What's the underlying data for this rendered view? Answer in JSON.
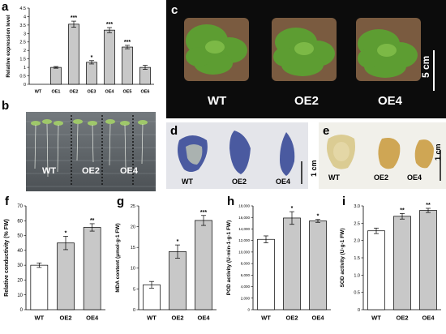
{
  "panels": {
    "a": "a",
    "b": "b",
    "c": "c",
    "d": "d",
    "e": "e",
    "f": "f",
    "g": "g",
    "h": "h",
    "i": "i"
  },
  "photo_b": {
    "labels": [
      "WT",
      "OE2",
      "OE4"
    ]
  },
  "photo_c": {
    "labels": [
      "WT",
      "OE2",
      "OE4"
    ],
    "scale": "5 cm"
  },
  "photo_d": {
    "labels": [
      "WT",
      "OE2",
      "OE4"
    ],
    "scale": "1 cm"
  },
  "photo_e": {
    "labels": [
      "WT",
      "OE2",
      "OE4"
    ],
    "scale": "1 cm"
  },
  "chart_data": [
    {
      "id": "a",
      "type": "bar",
      "categories": [
        "WT",
        "OE1",
        "OE2",
        "OE3",
        "OE4",
        "OE5",
        "OE6"
      ],
      "values": [
        0,
        1.0,
        3.55,
        1.3,
        3.2,
        2.2,
        1.0
      ],
      "errors": [
        0,
        0.05,
        0.18,
        0.1,
        0.15,
        0.1,
        0.12
      ],
      "sig": [
        "",
        "",
        "***",
        "*",
        "***",
        "***",
        ""
      ],
      "ylabel": "Relative expression level",
      "ylim": [
        0,
        4.5
      ],
      "yticks": [
        0,
        0.5,
        1,
        1.5,
        2,
        2.5,
        3,
        3.5,
        4,
        4.5
      ],
      "yticklabels": [
        "0",
        "0.5",
        "1",
        "1.5",
        "2",
        "2.5",
        "3",
        "3.5",
        "4",
        "4.5"
      ],
      "colors": [
        "#c8c8c8",
        "#c8c8c8",
        "#c8c8c8",
        "#c8c8c8",
        "#c8c8c8",
        "#c8c8c8",
        "#c8c8c8"
      ]
    },
    {
      "id": "f",
      "type": "bar",
      "categories": [
        "WT",
        "OE2",
        "OE4"
      ],
      "values": [
        30,
        45,
        55.5
      ],
      "errors": [
        1.5,
        4.5,
        2.5
      ],
      "sig": [
        "",
        "*",
        "**"
      ],
      "ylabel": "Relative conductivity (% FW)",
      "ylim": [
        0,
        70
      ],
      "yticks": [
        0,
        10,
        20,
        30,
        40,
        50,
        60,
        70
      ],
      "yticklabels": [
        "0",
        "10",
        "20",
        "30",
        "40",
        "50",
        "60",
        "70"
      ],
      "colors": [
        "#ffffff",
        "#c8c8c8",
        "#c8c8c8"
      ]
    },
    {
      "id": "g",
      "type": "bar",
      "categories": [
        "WT",
        "OE2",
        "OE4"
      ],
      "values": [
        6,
        14,
        21.5
      ],
      "errors": [
        0.8,
        1.6,
        1.2
      ],
      "sig": [
        "",
        "*",
        "***"
      ],
      "ylabel": "MDA content (μmol·g-1 FW)",
      "ylim": [
        0,
        25
      ],
      "yticks": [
        0,
        5,
        10,
        15,
        20,
        25
      ],
      "yticklabels": [
        "0",
        "5",
        "10",
        "15",
        "20",
        "25"
      ],
      "colors": [
        "#ffffff",
        "#c8c8c8",
        "#c8c8c8"
      ]
    },
    {
      "id": "h",
      "type": "bar",
      "categories": [
        "WT",
        "OE2",
        "OE4"
      ],
      "values": [
        12200,
        15900,
        15400
      ],
      "errors": [
        600,
        1100,
        250
      ],
      "sig": [
        "",
        "*",
        "*"
      ],
      "ylabel": "POD activity (U·min-1·g-1 FW)",
      "ylim": [
        0,
        18000
      ],
      "yticks": [
        0,
        2000,
        4000,
        6000,
        8000,
        10000,
        12000,
        14000,
        16000,
        18000
      ],
      "yticklabels": [
        "0",
        "2,000",
        "4,000",
        "6,000",
        "8,000",
        "10,000",
        "12,000",
        "14,000",
        "16,000",
        "18,000"
      ],
      "colors": [
        "#ffffff",
        "#c8c8c8",
        "#c8c8c8"
      ]
    },
    {
      "id": "i",
      "type": "bar",
      "categories": [
        "WT",
        "OE2",
        "OE4"
      ],
      "values": [
        2.28,
        2.7,
        2.87
      ],
      "errors": [
        0.08,
        0.08,
        0.06
      ],
      "sig": [
        "",
        "**",
        "**"
      ],
      "ylabel": "SOD activity (U·g-1 FW)",
      "ylim": [
        0,
        3.0
      ],
      "yticks": [
        0,
        0.5,
        1.0,
        1.5,
        2.0,
        2.5,
        3.0
      ],
      "yticklabels": [
        "0",
        "0.5",
        "1.0",
        "1.5",
        "2.0",
        "2.5",
        "3.0"
      ],
      "colors": [
        "#ffffff",
        "#c8c8c8",
        "#c8c8c8"
      ]
    }
  ]
}
